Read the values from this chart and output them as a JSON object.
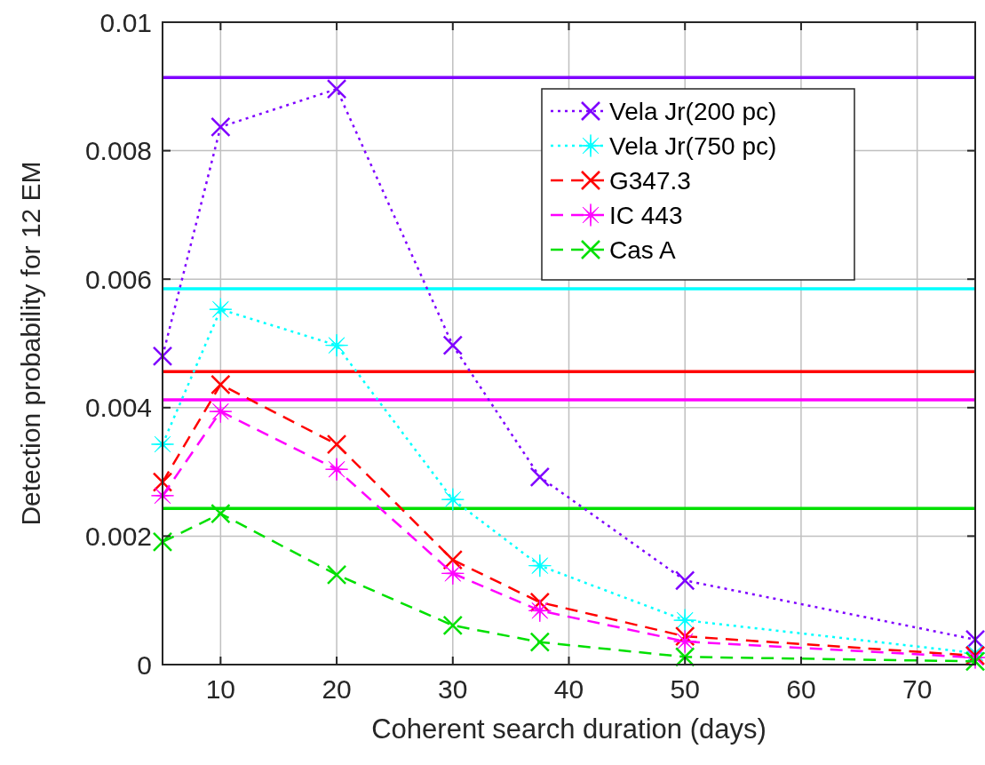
{
  "chart_data": {
    "type": "line",
    "xlabel": "Coherent search duration (days)",
    "ylabel": "Detection probability for 12 EM",
    "x": [
      5,
      10,
      20,
      30,
      37.5,
      50,
      75
    ],
    "series": [
      {
        "name": "Vela Jr(200 pc)",
        "color": "#7f00ff",
        "marker": "cross",
        "line_style": "dotted",
        "values": [
          0.0048,
          0.00837,
          0.00896,
          0.00497,
          0.00292,
          0.00131,
          0.00039
        ]
      },
      {
        "name": "Vela Jr(750 pc)",
        "color": "#00ffff",
        "marker": "star",
        "line_style": "dotted",
        "values": [
          0.00343,
          0.00553,
          0.00497,
          0.00257,
          0.00154,
          0.00069,
          0.00018
        ]
      },
      {
        "name": "G347.3",
        "color": "#ff0000",
        "marker": "cross",
        "line_style": "dashed",
        "values": [
          0.00284,
          0.00436,
          0.00343,
          0.00163,
          0.00097,
          0.00044,
          0.00014
        ]
      },
      {
        "name": "IC 443",
        "color": "#ff00ff",
        "marker": "star",
        "line_style": "dashed",
        "values": [
          0.00263,
          0.00394,
          0.00304,
          0.00142,
          0.00084,
          0.00036,
          0.00011
        ]
      },
      {
        "name": "Cas A",
        "color": "#00e000",
        "marker": "cross",
        "line_style": "dashed",
        "values": [
          0.00191,
          0.00235,
          0.0014,
          0.00061,
          0.00035,
          0.00012,
          5e-05
        ]
      }
    ],
    "ref_lines": [
      {
        "axis": "y",
        "value": 0.00914,
        "color": "#7f00ff"
      },
      {
        "axis": "y",
        "value": 0.00585,
        "color": "#00ffff"
      },
      {
        "axis": "y",
        "value": 0.00456,
        "color": "#ff0000"
      },
      {
        "axis": "y",
        "value": 0.00412,
        "color": "#ff00ff"
      },
      {
        "axis": "y",
        "value": 0.00243,
        "color": "#00e000"
      }
    ],
    "xlim": [
      5,
      75
    ],
    "xticks": [
      10,
      20,
      30,
      40,
      50,
      60,
      70
    ],
    "ylim": [
      0,
      0.01
    ],
    "yticks": [
      0,
      0.002,
      0.004,
      0.006,
      0.008,
      0.01
    ],
    "grid": true,
    "legend": "top right"
  }
}
